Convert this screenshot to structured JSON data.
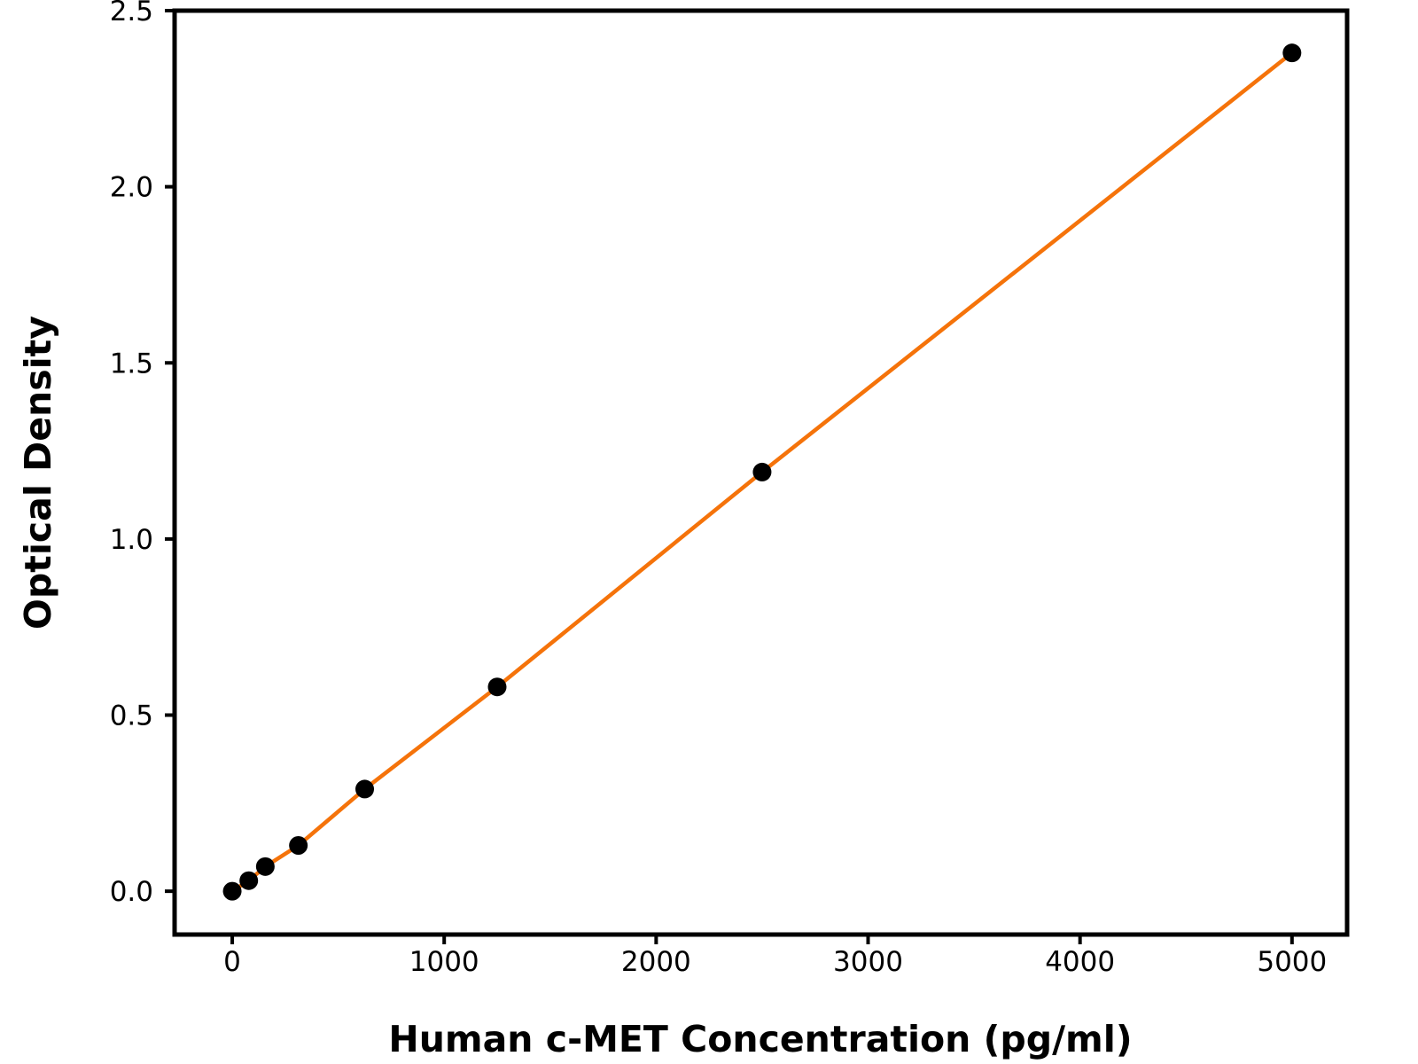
{
  "chart_data": {
    "type": "scatter",
    "title": "",
    "xlabel": "Human c-MET Concentration (pg/ml)",
    "ylabel": "Optical Density",
    "x": [
      0,
      78,
      156,
      312,
      625,
      1250,
      2500,
      5000
    ],
    "y": [
      0.0,
      0.03,
      0.07,
      0.13,
      0.29,
      0.58,
      1.19,
      2.38
    ],
    "x_ticks": [
      0,
      1000,
      2000,
      3000,
      4000,
      5000
    ],
    "y_ticks": [
      0.0,
      0.5,
      1.0,
      1.5,
      2.0,
      2.5
    ],
    "xlim": [
      -272,
      5260
    ],
    "ylim": [
      -0.123,
      2.5
    ],
    "grid": false,
    "legend": null,
    "fit_line": true,
    "colors": {
      "line": "#f5730a",
      "marker": "#000000",
      "axis": "#000000",
      "background": "#ffffff"
    },
    "y_tick_decimals": 1
  }
}
